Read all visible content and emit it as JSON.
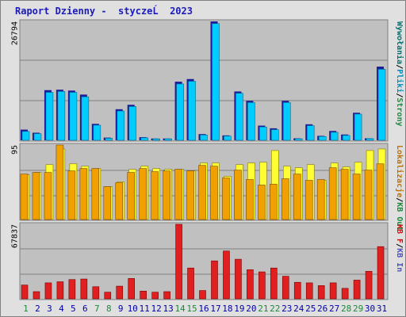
{
  "window": {
    "title": "Raport Dzienny -  styczeĹ  2023"
  },
  "colors": {
    "background": "#e0e0e0",
    "panel": "#c0c0c0",
    "grid": "#808080",
    "visits": "#00ccff",
    "visits_shadow": "#1b1b9c",
    "pages": "#f0a000",
    "hits": "#ffff33",
    "traffic": "#e02020",
    "weekday_label": "#0000aa",
    "weekend_label": "#1a8a3a"
  },
  "chart_data": [
    {
      "type": "bar",
      "title": "Raport Dzienny -  styczeĹ  2023",
      "ymax_label": "26794",
      "ylim": [
        0,
        26794
      ],
      "categories": [
        "1",
        "2",
        "3",
        "4",
        "5",
        "6",
        "7",
        "8",
        "9",
        "10",
        "11",
        "12",
        "13",
        "14",
        "15",
        "16",
        "17",
        "18",
        "19",
        "20",
        "21",
        "22",
        "23",
        "24",
        "25",
        "26",
        "27",
        "28",
        "29",
        "30",
        "31"
      ],
      "series": [
        {
          "name": "Odwiedziny",
          "values": [
            2400,
            1700,
            11300,
            11400,
            11200,
            10300,
            3700,
            600,
            7000,
            8000,
            700,
            400,
            400,
            13200,
            13800,
            1400,
            26794,
            1100,
            11000,
            8900,
            3300,
            2700,
            8900,
            450,
            3600,
            1000,
            2100,
            1300,
            6200,
            450,
            16600
          ]
        },
        {
          "name": "Wywołania",
          "values": [
            2000,
            1500,
            10800,
            11000,
            10800,
            9800,
            3400,
            450,
            6600,
            7600,
            550,
            320,
            330,
            12700,
            13300,
            1200,
            26300,
            950,
            10600,
            8500,
            3000,
            2400,
            8500,
            350,
            3300,
            850,
            1800,
            1100,
            5900,
            370,
            16000
          ]
        }
      ],
      "legend_right": [
        "Wywołania",
        "Pliki",
        "Strony"
      ]
    },
    {
      "type": "bar",
      "ymax_label": "95",
      "ylim": [
        0,
        95
      ],
      "categories": [
        "1",
        "2",
        "3",
        "4",
        "5",
        "6",
        "7",
        "8",
        "9",
        "10",
        "11",
        "12",
        "13",
        "14",
        "15",
        "16",
        "17",
        "18",
        "19",
        "20",
        "21",
        "22",
        "23",
        "24",
        "25",
        "26",
        "27",
        "28",
        "29",
        "30",
        "31"
      ],
      "series": [
        {
          "name": "Pliki",
          "values": [
            57,
            60,
            70,
            90,
            71,
            68,
            65,
            42,
            48,
            64,
            68,
            65,
            64,
            64,
            62,
            72,
            72,
            55,
            70,
            72,
            73,
            88,
            68,
            66,
            70,
            50,
            72,
            67,
            73,
            88,
            90
          ]
        },
        {
          "name": "Strony",
          "values": [
            58,
            60,
            60,
            95,
            62,
            65,
            65,
            42,
            47,
            60,
            65,
            61,
            62,
            64,
            62,
            69,
            68,
            53,
            63,
            51,
            44,
            45,
            52,
            58,
            50,
            51,
            66,
            64,
            58,
            63,
            71
          ]
        }
      ],
      "legend_right": [
        "Lokalizacje",
        "KB Out"
      ]
    },
    {
      "type": "bar",
      "ymax_label": "67837",
      "ylim": [
        0,
        67837
      ],
      "categories": [
        "1",
        "2",
        "3",
        "4",
        "5",
        "6",
        "7",
        "8",
        "9",
        "10",
        "11",
        "12",
        "13",
        "14",
        "15",
        "16",
        "17",
        "18",
        "19",
        "20",
        "21",
        "22",
        "23",
        "24",
        "25",
        "26",
        "27",
        "28",
        "29",
        "30",
        "31"
      ],
      "series": [
        {
          "name": "KB F",
          "values": [
            12500,
            6500,
            14500,
            15500,
            17500,
            18000,
            11000,
            6000,
            11500,
            18500,
            7000,
            6000,
            6500,
            67837,
            28000,
            7500,
            34500,
            43500,
            36000,
            26500,
            24500,
            28000,
            20500,
            15000,
            14500,
            12000,
            14500,
            9500,
            17000,
            25000,
            47500
          ]
        }
      ],
      "legend_right": [
        "KB F",
        "KB In"
      ]
    }
  ],
  "x_axis": {
    "labels": [
      "1",
      "2",
      "3",
      "4",
      "5",
      "6",
      "7",
      "8",
      "9",
      "10",
      "11",
      "12",
      "13",
      "14",
      "15",
      "16",
      "17",
      "18",
      "19",
      "20",
      "21",
      "22",
      "23",
      "24",
      "25",
      "26",
      "27",
      "28",
      "29",
      "30",
      "31"
    ],
    "weekend_days": [
      "1",
      "7",
      "8",
      "14",
      "15",
      "21",
      "22",
      "28",
      "29"
    ]
  }
}
